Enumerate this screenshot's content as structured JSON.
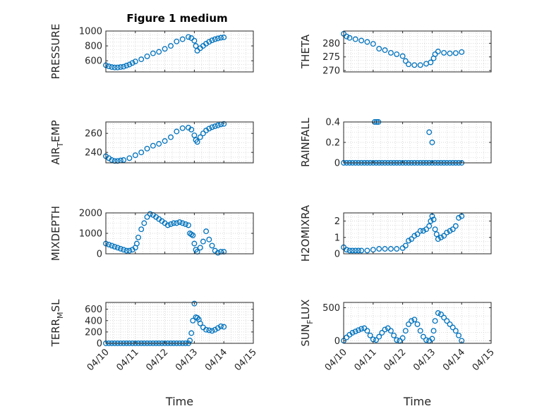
{
  "figure": {
    "title": "Figure 1 medium",
    "xlabel": "Time",
    "marker_color": "#0072BD",
    "x_tick_labels": [
      "04/10",
      "04/11",
      "04/12",
      "04/13",
      "04/14",
      "04/15"
    ]
  },
  "chart_data": [
    {
      "type": "scatter",
      "panel": "left-1",
      "ylabel": "PRESSURE",
      "xlim": [
        0,
        5
      ],
      "ylim": [
        450,
        1000
      ],
      "yticks": [
        600,
        800,
        1000
      ],
      "ytick_labels": [
        "600",
        "800",
        "1000"
      ],
      "grid": true,
      "minor_grid": true,
      "show_x_tick_labels": false,
      "x": [
        0,
        0.1,
        0.2,
        0.3,
        0.4,
        0.5,
        0.6,
        0.7,
        0.8,
        0.9,
        1.0,
        1.2,
        1.4,
        1.6,
        1.8,
        2.0,
        2.2,
        2.4,
        2.6,
        2.8,
        2.9,
        3.0,
        3.05,
        3.1,
        3.2,
        3.3,
        3.4,
        3.5,
        3.6,
        3.7,
        3.8,
        3.9,
        4.0
      ],
      "y": [
        540,
        525,
        515,
        510,
        510,
        515,
        520,
        535,
        550,
        570,
        590,
        620,
        660,
        700,
        720,
        760,
        800,
        860,
        890,
        920,
        905,
        870,
        800,
        735,
        770,
        800,
        830,
        855,
        875,
        890,
        900,
        910,
        915
      ]
    },
    {
      "type": "scatter",
      "panel": "right-1",
      "ylabel": "THETA",
      "xlim": [
        0,
        5
      ],
      "ylim": [
        269.5,
        284.5
      ],
      "yticks": [
        270,
        275,
        280
      ],
      "ytick_labels": [
        "270",
        "275",
        "280"
      ],
      "grid": true,
      "minor_grid": true,
      "show_x_tick_labels": false,
      "x": [
        0,
        0.1,
        0.2,
        0.4,
        0.6,
        0.8,
        1.0,
        1.2,
        1.4,
        1.6,
        1.8,
        2.0,
        2.1,
        2.2,
        2.4,
        2.6,
        2.8,
        2.95,
        3.05,
        3.1,
        3.2,
        3.4,
        3.6,
        3.8,
        4.0
      ],
      "y": [
        283.5,
        282.5,
        282,
        281.5,
        281,
        280.5,
        279.8,
        278,
        277.5,
        276.5,
        276,
        275.3,
        273.5,
        272.3,
        272,
        272,
        272.5,
        273,
        274.5,
        276,
        277,
        276.5,
        276.3,
        276.4,
        276.8
      ]
    },
    {
      "type": "scatter",
      "panel": "left-2",
      "ylabel": "AIR_TEMP",
      "xlim": [
        0,
        5
      ],
      "ylim": [
        229,
        272
      ],
      "yticks": [
        240,
        260
      ],
      "ytick_labels": [
        "240",
        "260"
      ],
      "grid": true,
      "minor_grid": true,
      "show_x_tick_labels": false,
      "x": [
        0,
        0.1,
        0.2,
        0.3,
        0.4,
        0.5,
        0.6,
        0.8,
        1.0,
        1.2,
        1.4,
        1.6,
        1.8,
        2.0,
        2.2,
        2.4,
        2.6,
        2.8,
        2.9,
        3.0,
        3.05,
        3.1,
        3.2,
        3.3,
        3.4,
        3.5,
        3.6,
        3.7,
        3.8,
        3.9,
        4.0
      ],
      "y": [
        236,
        234,
        232,
        231,
        231,
        231.5,
        232,
        234,
        237,
        240,
        244,
        247,
        249,
        252,
        256,
        262,
        265.5,
        266,
        264,
        258,
        253,
        251,
        256,
        260,
        263,
        265,
        266.5,
        267.5,
        268.5,
        269.5,
        270
      ]
    },
    {
      "type": "scatter",
      "panel": "right-2",
      "ylabel": "RAINFALL",
      "xlim": [
        0,
        5
      ],
      "ylim": [
        0,
        0.4
      ],
      "yticks": [
        0,
        0.2,
        0.4
      ],
      "ytick_labels": [
        "0",
        "0.2",
        "0.4"
      ],
      "grid": true,
      "minor_grid": true,
      "show_x_tick_labels": false,
      "x": [
        0,
        0.1,
        0.2,
        0.3,
        0.4,
        0.5,
        0.6,
        0.7,
        0.8,
        0.9,
        1.0,
        1.1,
        1.2,
        1.3,
        1.4,
        1.5,
        1.6,
        1.7,
        1.8,
        1.9,
        2.0,
        2.1,
        2.2,
        2.3,
        2.4,
        2.5,
        2.6,
        2.7,
        2.8,
        2.9,
        3.0,
        3.1,
        3.2,
        3.3,
        3.4,
        3.5,
        3.6,
        3.7,
        3.8,
        3.9,
        4.0,
        1.05,
        1.12,
        1.18,
        2.9,
        3.0
      ],
      "y": [
        0,
        0,
        0,
        0,
        0,
        0,
        0,
        0,
        0,
        0,
        0,
        0,
        0,
        0,
        0,
        0,
        0,
        0,
        0,
        0,
        0,
        0,
        0,
        0,
        0,
        0,
        0,
        0,
        0,
        0,
        0,
        0,
        0,
        0,
        0,
        0,
        0,
        0,
        0,
        0,
        0,
        0.4,
        0.4,
        0.4,
        0.3,
        0.2
      ]
    },
    {
      "type": "scatter",
      "panel": "left-3",
      "ylabel": "MIXDEPTH",
      "xlim": [
        0,
        5
      ],
      "ylim": [
        0,
        2000
      ],
      "yticks": [
        0,
        1000,
        2000
      ],
      "ytick_labels": [
        "0",
        "1000",
        "2000"
      ],
      "grid": true,
      "minor_grid": true,
      "show_x_tick_labels": false,
      "x": [
        0,
        0.1,
        0.2,
        0.3,
        0.4,
        0.5,
        0.6,
        0.7,
        0.8,
        0.9,
        1.0,
        1.05,
        1.1,
        1.2,
        1.3,
        1.4,
        1.5,
        1.6,
        1.7,
        1.8,
        1.9,
        2.0,
        2.1,
        2.2,
        2.3,
        2.4,
        2.5,
        2.6,
        2.7,
        2.8,
        2.85,
        2.9,
        2.95,
        3.0,
        3.05,
        3.1,
        3.2,
        3.3,
        3.4,
        3.5,
        3.6,
        3.7,
        3.8,
        3.9,
        4.0
      ],
      "y": [
        500,
        450,
        400,
        350,
        300,
        250,
        200,
        150,
        150,
        200,
        300,
        500,
        800,
        1200,
        1500,
        1800,
        1950,
        1900,
        1800,
        1700,
        1600,
        1500,
        1400,
        1450,
        1500,
        1500,
        1550,
        1500,
        1450,
        1400,
        1000,
        950,
        900,
        500,
        200,
        100,
        300,
        600,
        1100,
        700,
        400,
        150,
        50,
        100,
        100
      ]
    },
    {
      "type": "scatter",
      "panel": "right-3",
      "ylabel": "H2OMIXRA",
      "xlim": [
        0,
        5
      ],
      "ylim": [
        0,
        2.5
      ],
      "yticks": [
        0,
        1,
        2
      ],
      "ytick_labels": [
        "0",
        "1",
        "2"
      ],
      "grid": true,
      "minor_grid": true,
      "show_x_tick_labels": false,
      "x": [
        0,
        0.1,
        0.2,
        0.3,
        0.4,
        0.5,
        0.6,
        0.8,
        1.0,
        1.2,
        1.4,
        1.6,
        1.8,
        2.0,
        2.1,
        2.2,
        2.3,
        2.4,
        2.5,
        2.6,
        2.7,
        2.8,
        2.9,
        2.95,
        3.0,
        3.05,
        3.1,
        3.15,
        3.2,
        3.3,
        3.4,
        3.5,
        3.6,
        3.7,
        3.8,
        3.9,
        4.0
      ],
      "y": [
        0.4,
        0.25,
        0.2,
        0.2,
        0.2,
        0.2,
        0.2,
        0.2,
        0.25,
        0.3,
        0.3,
        0.3,
        0.3,
        0.35,
        0.5,
        0.8,
        0.9,
        1.1,
        1.2,
        1.4,
        1.4,
        1.5,
        1.7,
        2.0,
        2.3,
        2.1,
        1.5,
        1.2,
        0.9,
        1.0,
        1.1,
        1.3,
        1.4,
        1.5,
        1.7,
        2.2,
        2.3
      ]
    },
    {
      "type": "scatter",
      "panel": "left-4",
      "ylabel": "TERR_MSL",
      "xlim": [
        0,
        5
      ],
      "ylim": [
        0,
        720
      ],
      "yticks": [
        0,
        200,
        400,
        600
      ],
      "ytick_labels": [
        "0",
        "200",
        "400",
        "600"
      ],
      "grid": true,
      "minor_grid": true,
      "show_x_tick_labels": true,
      "x": [
        0,
        0.1,
        0.2,
        0.3,
        0.4,
        0.5,
        0.6,
        0.7,
        0.8,
        0.9,
        1.0,
        1.1,
        1.2,
        1.3,
        1.4,
        1.5,
        1.6,
        1.7,
        1.8,
        1.9,
        2.0,
        2.1,
        2.2,
        2.3,
        2.4,
        2.5,
        2.6,
        2.7,
        2.8,
        2.85,
        2.9,
        2.95,
        3.0,
        3.05,
        3.1,
        3.15,
        3.2,
        3.3,
        3.4,
        3.5,
        3.6,
        3.7,
        3.8,
        3.9,
        4.0
      ],
      "y": [
        0,
        0,
        0,
        0,
        0,
        0,
        0,
        0,
        0,
        0,
        0,
        0,
        0,
        0,
        0,
        0,
        0,
        0,
        0,
        0,
        0,
        0,
        0,
        0,
        0,
        0,
        0,
        0,
        0,
        50,
        180,
        400,
        700,
        460,
        450,
        420,
        350,
        280,
        240,
        230,
        220,
        240,
        270,
        300,
        290
      ]
    },
    {
      "type": "scatter",
      "panel": "right-4",
      "ylabel": "SUN_FLUX",
      "xlim": [
        0,
        5
      ],
      "ylim": [
        -40,
        580
      ],
      "yticks": [
        0,
        500
      ],
      "ytick_labels": [
        "0",
        "500"
      ],
      "grid": true,
      "minor_grid": true,
      "show_x_tick_labels": true,
      "x": [
        0,
        0.1,
        0.2,
        0.3,
        0.4,
        0.5,
        0.6,
        0.7,
        0.8,
        0.9,
        1.0,
        1.1,
        1.2,
        1.3,
        1.4,
        1.5,
        1.6,
        1.7,
        1.8,
        1.9,
        2.0,
        2.1,
        2.2,
        2.3,
        2.4,
        2.5,
        2.6,
        2.7,
        2.8,
        2.9,
        3.0,
        3.05,
        3.1,
        3.2,
        3.3,
        3.4,
        3.5,
        3.6,
        3.7,
        3.8,
        3.9,
        4.0
      ],
      "y": [
        0,
        50,
        90,
        120,
        140,
        160,
        180,
        190,
        150,
        80,
        20,
        10,
        60,
        120,
        170,
        190,
        150,
        80,
        10,
        0,
        40,
        150,
        250,
        300,
        320,
        250,
        150,
        60,
        10,
        0,
        30,
        150,
        300,
        420,
        400,
        350,
        300,
        250,
        200,
        150,
        80,
        0
      ]
    }
  ]
}
